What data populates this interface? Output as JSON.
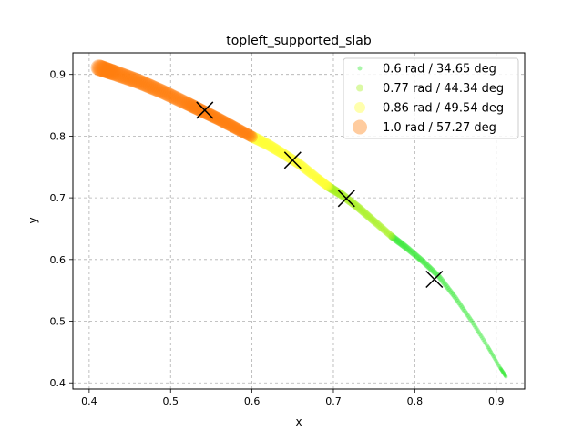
{
  "chart_data": {
    "type": "scatter",
    "title": "topleft_supported_slab",
    "xlabel": "x",
    "ylabel": "y",
    "xlim": [
      0.38,
      0.935
    ],
    "ylim": [
      0.39,
      0.935
    ],
    "xticks": [
      "0.4",
      "0.5",
      "0.6",
      "0.7",
      "0.8",
      "0.9"
    ],
    "yticks": [
      "0.4",
      "0.5",
      "0.6",
      "0.7",
      "0.8",
      "0.9"
    ],
    "grid": true,
    "legend_position": "top-right",
    "series": [
      {
        "name": "0.6 rad / 34.65 deg",
        "color": "#2ee82e",
        "x": [
          0.772,
          0.79,
          0.81,
          0.83,
          0.85,
          0.87,
          0.89,
          0.905,
          0.912
        ],
        "y": [
          0.637,
          0.619,
          0.597,
          0.572,
          0.538,
          0.5,
          0.458,
          0.424,
          0.41
        ]
      },
      {
        "name": "0.77 rad / 44.34 deg",
        "color": "#a6f01e",
        "x": [
          0.694,
          0.71,
          0.73,
          0.75,
          0.772
        ],
        "y": [
          0.718,
          0.705,
          0.685,
          0.662,
          0.637
        ]
      },
      {
        "name": "0.86 rad / 49.54 deg",
        "color": "#ffff33",
        "x": [
          0.6,
          0.62,
          0.64,
          0.66,
          0.68,
          0.694
        ],
        "y": [
          0.799,
          0.786,
          0.77,
          0.753,
          0.732,
          0.718
        ]
      },
      {
        "name": "1.0 rad / 57.27 deg",
        "color": "#ff7f0e",
        "x": [
          0.412,
          0.43,
          0.46,
          0.49,
          0.52,
          0.54,
          0.56,
          0.58,
          0.6
        ],
        "y": [
          0.911,
          0.903,
          0.889,
          0.872,
          0.853,
          0.84,
          0.827,
          0.813,
          0.799
        ]
      }
    ],
    "markers": {
      "symbol": "x",
      "color": "#000000",
      "x": [
        0.542,
        0.65,
        0.716,
        0.824
      ],
      "y": [
        0.842,
        0.761,
        0.699,
        0.568
      ]
    }
  }
}
